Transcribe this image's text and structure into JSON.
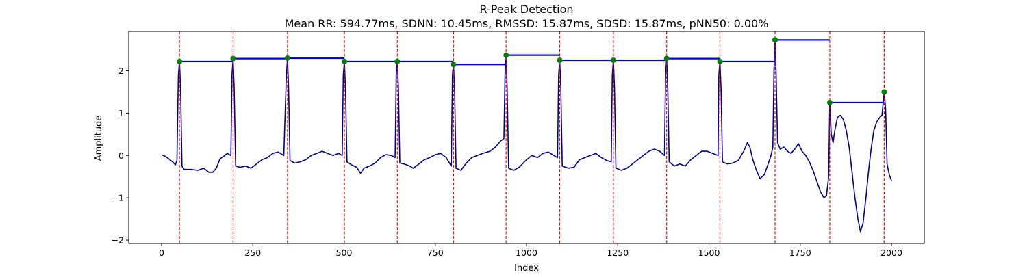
{
  "chart_data": {
    "type": "line",
    "title": "R-Peak Detection",
    "subtitle": "Mean RR: 594.77ms, SDNN: 10.45ms, RMSSD: 15.87ms, SDSD: 15.87ms, pNN50: 0.00%",
    "xlabel": "Index",
    "ylabel": "Amplitude",
    "xlim": [
      -90,
      2090
    ],
    "ylim": [
      -2.08,
      2.93
    ],
    "xticks": [
      0,
      250,
      500,
      750,
      1000,
      1250,
      1500,
      1750,
      2000
    ],
    "yticks": [
      -2,
      -1,
      0,
      1,
      2
    ],
    "grid": false,
    "colors": {
      "signal": "#00008b",
      "peak_marker": "#008000",
      "peak_vline": "#ff0000",
      "rr_segment": "#0000ff"
    },
    "signal_keypoints": [
      [
        0,
        0.02
      ],
      [
        10,
        -0.02
      ],
      [
        20,
        -0.08
      ],
      [
        30,
        -0.15
      ],
      [
        38,
        -0.22
      ],
      [
        42,
        -0.12
      ],
      [
        46,
        1.9
      ],
      [
        49,
        2.22
      ],
      [
        52,
        1.6
      ],
      [
        56,
        -0.25
      ],
      [
        62,
        -0.33
      ],
      [
        80,
        -0.33
      ],
      [
        100,
        -0.35
      ],
      [
        115,
        -0.3
      ],
      [
        130,
        -0.4
      ],
      [
        140,
        -0.4
      ],
      [
        150,
        -0.3
      ],
      [
        160,
        -0.08
      ],
      [
        170,
        -0.02
      ],
      [
        180,
        0.05
      ],
      [
        190,
        0.0
      ],
      [
        193,
        1.9
      ],
      [
        196,
        2.29
      ],
      [
        199,
        1.6
      ],
      [
        203,
        -0.25
      ],
      [
        215,
        -0.28
      ],
      [
        230,
        -0.25
      ],
      [
        245,
        -0.3
      ],
      [
        260,
        -0.2
      ],
      [
        275,
        -0.1
      ],
      [
        290,
        -0.05
      ],
      [
        305,
        0.05
      ],
      [
        320,
        0.08
      ],
      [
        335,
        0.0
      ],
      [
        342,
        1.9
      ],
      [
        345,
        2.3
      ],
      [
        348,
        1.6
      ],
      [
        352,
        -0.12
      ],
      [
        365,
        -0.18
      ],
      [
        380,
        -0.15
      ],
      [
        395,
        -0.1
      ],
      [
        410,
        0.0
      ],
      [
        425,
        0.05
      ],
      [
        440,
        0.1
      ],
      [
        455,
        0.05
      ],
      [
        470,
        0.0
      ],
      [
        485,
        0.05
      ],
      [
        495,
        0.0
      ],
      [
        498,
        1.9
      ],
      [
        501,
        2.22
      ],
      [
        504,
        1.6
      ],
      [
        508,
        -0.15
      ],
      [
        520,
        -0.22
      ],
      [
        535,
        -0.28
      ],
      [
        545,
        -0.42
      ],
      [
        555,
        -0.3
      ],
      [
        570,
        -0.25
      ],
      [
        585,
        -0.18
      ],
      [
        600,
        -0.05
      ],
      [
        615,
        0.02
      ],
      [
        630,
        0.0
      ],
      [
        640,
        -0.05
      ],
      [
        643,
        1.9
      ],
      [
        646,
        2.22
      ],
      [
        649,
        1.6
      ],
      [
        653,
        -0.18
      ],
      [
        665,
        -0.2
      ],
      [
        680,
        -0.25
      ],
      [
        690,
        -0.3
      ],
      [
        705,
        -0.2
      ],
      [
        720,
        -0.1
      ],
      [
        735,
        -0.05
      ],
      [
        750,
        0.02
      ],
      [
        765,
        0.05
      ],
      [
        780,
        -0.05
      ],
      [
        794,
        -0.25
      ],
      [
        797,
        1.9
      ],
      [
        800,
        2.15
      ],
      [
        803,
        1.5
      ],
      [
        807,
        -0.3
      ],
      [
        820,
        -0.35
      ],
      [
        835,
        -0.18
      ],
      [
        850,
        -0.05
      ],
      [
        865,
        0.0
      ],
      [
        880,
        0.05
      ],
      [
        900,
        0.1
      ],
      [
        915,
        0.2
      ],
      [
        930,
        0.35
      ],
      [
        938,
        0.4
      ],
      [
        941,
        1.9
      ],
      [
        944,
        2.37
      ],
      [
        947,
        1.6
      ],
      [
        951,
        -0.3
      ],
      [
        965,
        -0.35
      ],
      [
        980,
        -0.28
      ],
      [
        1000,
        -0.1
      ],
      [
        1015,
        0.0
      ],
      [
        1030,
        -0.05
      ],
      [
        1045,
        0.05
      ],
      [
        1060,
        0.08
      ],
      [
        1075,
        0.0
      ],
      [
        1085,
        -0.05
      ],
      [
        1088,
        1.9
      ],
      [
        1091,
        2.25
      ],
      [
        1094,
        1.6
      ],
      [
        1098,
        -0.25
      ],
      [
        1115,
        -0.3
      ],
      [
        1130,
        -0.28
      ],
      [
        1145,
        -0.1
      ],
      [
        1160,
        -0.05
      ],
      [
        1175,
        0.0
      ],
      [
        1190,
        0.05
      ],
      [
        1205,
        -0.05
      ],
      [
        1220,
        -0.12
      ],
      [
        1232,
        -0.15
      ],
      [
        1235,
        1.9
      ],
      [
        1238,
        2.25
      ],
      [
        1241,
        1.6
      ],
      [
        1245,
        -0.3
      ],
      [
        1260,
        -0.35
      ],
      [
        1275,
        -0.3
      ],
      [
        1290,
        -0.2
      ],
      [
        1305,
        -0.1
      ],
      [
        1320,
        0.0
      ],
      [
        1335,
        0.1
      ],
      [
        1350,
        0.15
      ],
      [
        1365,
        0.1
      ],
      [
        1378,
        0.0
      ],
      [
        1381,
        1.9
      ],
      [
        1384,
        2.29
      ],
      [
        1387,
        1.6
      ],
      [
        1391,
        -0.15
      ],
      [
        1405,
        -0.25
      ],
      [
        1420,
        -0.2
      ],
      [
        1435,
        -0.25
      ],
      [
        1450,
        -0.1
      ],
      [
        1465,
        0.0
      ],
      [
        1480,
        0.1
      ],
      [
        1495,
        0.1
      ],
      [
        1510,
        0.05
      ],
      [
        1525,
        0.0
      ],
      [
        1527,
        1.9
      ],
      [
        1530,
        2.22
      ],
      [
        1533,
        1.6
      ],
      [
        1537,
        -0.15
      ],
      [
        1550,
        -0.2
      ],
      [
        1565,
        -0.18
      ],
      [
        1580,
        -0.12
      ],
      [
        1595,
        0.1
      ],
      [
        1605,
        0.3
      ],
      [
        1612,
        0.2
      ],
      [
        1620,
        -0.1
      ],
      [
        1630,
        -0.35
      ],
      [
        1640,
        -0.55
      ],
      [
        1652,
        -0.45
      ],
      [
        1662,
        -0.2
      ],
      [
        1670,
        0.0
      ],
      [
        1675,
        0.2
      ],
      [
        1678,
        2.0
      ],
      [
        1681,
        2.73
      ],
      [
        1684,
        1.9
      ],
      [
        1688,
        0.3
      ],
      [
        1695,
        0.15
      ],
      [
        1705,
        0.2
      ],
      [
        1715,
        0.1
      ],
      [
        1725,
        0.05
      ],
      [
        1735,
        0.15
      ],
      [
        1745,
        0.28
      ],
      [
        1755,
        0.1
      ],
      [
        1765,
        0.0
      ],
      [
        1775,
        -0.15
      ],
      [
        1785,
        -0.35
      ],
      [
        1795,
        -0.6
      ],
      [
        1805,
        -0.85
      ],
      [
        1815,
        -1.0
      ],
      [
        1822,
        -0.95
      ],
      [
        1828,
        -0.5
      ],
      [
        1831,
        1.25
      ],
      [
        1835,
        0.5
      ],
      [
        1840,
        0.3
      ],
      [
        1845,
        0.6
      ],
      [
        1852,
        0.9
      ],
      [
        1860,
        0.95
      ],
      [
        1868,
        0.85
      ],
      [
        1876,
        0.6
      ],
      [
        1884,
        0.2
      ],
      [
        1892,
        -0.4
      ],
      [
        1900,
        -1.0
      ],
      [
        1908,
        -1.5
      ],
      [
        1915,
        -1.8
      ],
      [
        1922,
        -1.6
      ],
      [
        1930,
        -1.0
      ],
      [
        1938,
        -0.3
      ],
      [
        1945,
        0.2
      ],
      [
        1952,
        0.6
      ],
      [
        1960,
        0.8
      ],
      [
        1968,
        0.9
      ],
      [
        1974,
        0.95
      ],
      [
        1980,
        1.5
      ],
      [
        1984,
        1.1
      ],
      [
        1988,
        -0.2
      ],
      [
        1994,
        -0.45
      ],
      [
        1998,
        -0.55
      ],
      [
        2000,
        -0.6
      ]
    ],
    "peaks": [
      {
        "x": 49,
        "y": 2.22
      },
      {
        "x": 196,
        "y": 2.29
      },
      {
        "x": 345,
        "y": 2.3
      },
      {
        "x": 501,
        "y": 2.22
      },
      {
        "x": 646,
        "y": 2.22
      },
      {
        "x": 800,
        "y": 2.15
      },
      {
        "x": 944,
        "y": 2.37
      },
      {
        "x": 1091,
        "y": 2.25
      },
      {
        "x": 1238,
        "y": 2.25
      },
      {
        "x": 1384,
        "y": 2.29
      },
      {
        "x": 1530,
        "y": 2.22
      },
      {
        "x": 1681,
        "y": 2.73
      },
      {
        "x": 1831,
        "y": 1.25
      },
      {
        "x": 1980,
        "y": 1.5
      }
    ]
  }
}
